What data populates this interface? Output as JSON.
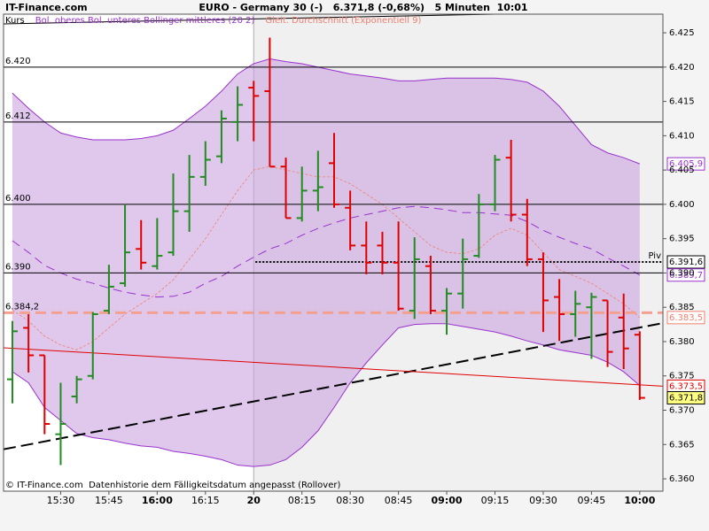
{
  "chart_data": {
    "type": "ohlc",
    "brand": "IT-Finance.com",
    "title": "EURO - Germany 30 (-)   6.371,8 (-0,68%)   5 Minuten  10:01",
    "footer": "© IT-Finance.com  Datenhistorie dem Fälligkeitsdatum angepasst (Rollover)",
    "categories": [
      null,
      null,
      null,
      "15:30",
      null,
      null,
      "15:45",
      null,
      null,
      "16:00",
      null,
      null,
      "16:15",
      null,
      null,
      "20",
      null,
      null,
      "08:15",
      null,
      null,
      "08:30",
      null,
      null,
      "08:45",
      null,
      null,
      "09:00",
      null,
      null,
      "09:15",
      null,
      null,
      "09:30",
      null,
      null,
      "09:45",
      null,
      null,
      "10:00"
    ],
    "ohlc": {
      "name": "Kurs",
      "up_color": "#228b22",
      "down_color": "#e00000",
      "open": [
        6.3745,
        6.382,
        6.378,
        6.3665,
        6.372,
        6.375,
        6.3845,
        6.3885,
        6.3935,
        6.391,
        6.393,
        6.399,
        6.404,
        6.407,
        6.412,
        6.417,
        6.4165,
        6.4055,
        6.398,
        6.402,
        6.406,
        6.3995,
        6.394,
        6.394,
        6.3915,
        6.3845,
        6.391,
        6.3845,
        6.387,
        6.3925,
        6.4,
        6.4068,
        6.3985,
        6.392,
        6.3865,
        6.384,
        6.385,
        6.386,
        6.3835,
        6.381
      ],
      "high": [
        6.383,
        6.384,
        6.378,
        6.374,
        6.375,
        6.3843,
        6.3912,
        6.4,
        6.3977,
        6.398,
        6.4045,
        6.4072,
        6.4092,
        6.4137,
        6.4172,
        6.418,
        6.4243,
        6.4068,
        6.4055,
        6.4078,
        6.4104,
        6.402,
        6.3975,
        6.396,
        6.3975,
        6.3952,
        6.3925,
        6.3878,
        6.395,
        6.4015,
        6.4072,
        6.4094,
        6.4008,
        6.393,
        6.3891,
        6.3874,
        6.3871,
        6.386,
        6.387,
        6.3815
      ],
      "low": [
        6.371,
        6.3755,
        6.3665,
        6.362,
        6.371,
        6.3745,
        6.384,
        6.388,
        6.3905,
        6.3905,
        6.3925,
        6.396,
        6.4027,
        6.406,
        6.4092,
        6.4092,
        6.4055,
        6.398,
        6.3975,
        6.399,
        6.3995,
        6.3933,
        6.3898,
        6.3898,
        6.3845,
        6.3833,
        6.384,
        6.381,
        6.3848,
        6.3922,
        6.399,
        6.3975,
        6.391,
        6.3814,
        6.3801,
        6.3807,
        6.3775,
        6.3763,
        6.376,
        6.3715
      ],
      "close": [
        6.3815,
        6.378,
        6.368,
        6.368,
        6.3745,
        6.384,
        6.388,
        6.393,
        6.3915,
        6.3925,
        6.399,
        6.404,
        6.4065,
        6.4125,
        6.4145,
        6.4158,
        6.4055,
        6.398,
        6.402,
        6.4025,
        6.4,
        6.394,
        6.3915,
        6.3915,
        6.3848,
        6.392,
        6.3845,
        6.387,
        6.392,
        6.4,
        6.4065,
        6.3985,
        6.392,
        6.386,
        6.384,
        6.3855,
        6.3865,
        6.3785,
        6.379,
        6.3718
      ]
    },
    "bands": {
      "name": "Bol. oberes Bol. unteres Bollinger mittleres (20 2)",
      "color": "#9932cc",
      "fill": "#c9a3e0",
      "upper": [
        6.4162,
        6.414,
        6.412,
        6.4104,
        6.4098,
        6.4094,
        6.4094,
        6.4094,
        6.4096,
        6.41,
        6.4108,
        6.4125,
        6.4143,
        6.4165,
        6.419,
        6.4205,
        6.4212,
        6.4208,
        6.4205,
        6.42,
        6.4195,
        6.419,
        6.4187,
        6.4184,
        6.418,
        6.418,
        6.4182,
        6.4184,
        6.4184,
        6.4184,
        6.4184,
        6.4182,
        6.4178,
        6.4165,
        6.4143,
        6.4115,
        6.4087,
        6.4075,
        6.4068,
        6.4059
      ],
      "middle": [
        6.3947,
        6.393,
        6.3911,
        6.39,
        6.3891,
        6.3885,
        6.3878,
        6.3872,
        6.3868,
        6.3865,
        6.3866,
        6.3872,
        6.3885,
        6.3895,
        6.391,
        6.3923,
        6.3935,
        6.3943,
        6.3955,
        6.3965,
        6.3973,
        6.398,
        6.3985,
        6.399,
        6.3995,
        6.3997,
        6.3995,
        6.3992,
        6.3988,
        6.3988,
        6.3986,
        6.3984,
        6.3975,
        6.3962,
        6.3952,
        6.3943,
        6.3935,
        6.3922,
        6.391,
        6.3897
      ],
      "lower": [
        6.3756,
        6.374,
        6.3704,
        6.3685,
        6.3666,
        6.366,
        6.3657,
        6.3652,
        6.3648,
        6.3646,
        6.364,
        6.3637,
        6.3633,
        6.3628,
        6.362,
        6.3618,
        6.362,
        6.3628,
        6.3646,
        6.367,
        6.3704,
        6.374,
        6.3769,
        6.3795,
        6.382,
        6.3825,
        6.3826,
        6.3826,
        6.3822,
        6.3818,
        6.3814,
        6.3808,
        6.3801,
        6.3795,
        6.3788,
        6.3784,
        6.378,
        6.377,
        6.3756,
        6.3736
      ]
    },
    "ema": {
      "name": "Gleit. Durchschnitt (Exponentiell 9)",
      "color": "#f08070",
      "values": [
        6.3846,
        6.383,
        6.3808,
        6.3795,
        6.3788,
        6.38,
        6.382,
        6.384,
        6.3855,
        6.387,
        6.389,
        6.392,
        6.395,
        6.3985,
        6.402,
        6.405,
        6.4055,
        6.405,
        6.4045,
        6.404,
        6.404,
        6.403,
        6.4015,
        6.4,
        6.398,
        6.396,
        6.394,
        6.393,
        6.3928,
        6.3935,
        6.3955,
        6.3965,
        6.3955,
        6.393,
        6.3905,
        6.3895,
        6.3885,
        6.387,
        6.3855,
        6.3835
      ]
    },
    "levels": [
      {
        "value": 6.42,
        "label": "6.420",
        "color": "#000000"
      },
      {
        "value": 6.412,
        "label": "6.412",
        "color": "#000000"
      },
      {
        "value": 6.4,
        "label": "6.400",
        "color": "#000000"
      },
      {
        "value": 6.39,
        "label": "6.390",
        "color": "#000000"
      },
      {
        "value": 6.3842,
        "label": "6.384,2",
        "color": "#f4a090",
        "dashed": true
      }
    ],
    "pivot": {
      "value": 6.3916,
      "label": "Piv",
      "color": "#000000"
    },
    "trendlines": [
      {
        "from": 6.3643,
        "to": 6.3827,
        "color": "#000000",
        "dashed": true
      },
      {
        "from": 6.3791,
        "to": 6.3735,
        "color": "#e00000"
      },
      {
        "from": 6.4263,
        "to": 6.4282,
        "color": "#000000"
      }
    ],
    "markers": [
      {
        "value": 6.4059,
        "label": "6.405,9",
        "color": "#9932cc"
      },
      {
        "value": 6.3916,
        "label": "6.391,6",
        "color": "#000000"
      },
      {
        "value": 6.3897,
        "label": "6.389,7",
        "color": "#9932cc"
      },
      {
        "value": 6.3835,
        "label": "6.383,5",
        "color": "#f08070"
      },
      {
        "value": 6.3735,
        "label": "6.373,5",
        "color": "#e00000"
      },
      {
        "value": 6.3718,
        "label": "6.371,8",
        "color": "#000000",
        "highlight": "#ffff80"
      }
    ],
    "ylim": [
      6.3582,
      6.4272
    ],
    "yticks": [
      {
        "value": 6.36,
        "label": "6.360"
      },
      6.365,
      {
        "value": 6.37,
        "label": "6.370"
      },
      6.375,
      {
        "value": 6.38,
        "label": "6.380"
      },
      6.385,
      {
        "value": 6.39,
        "label": "6.390"
      },
      6.395,
      {
        "value": 6.4,
        "label": "6.400"
      },
      6.405,
      {
        "value": 6.41,
        "label": "6.410"
      },
      6.415,
      {
        "value": 6.42,
        "label": "6.420"
      },
      6.425
    ]
  }
}
